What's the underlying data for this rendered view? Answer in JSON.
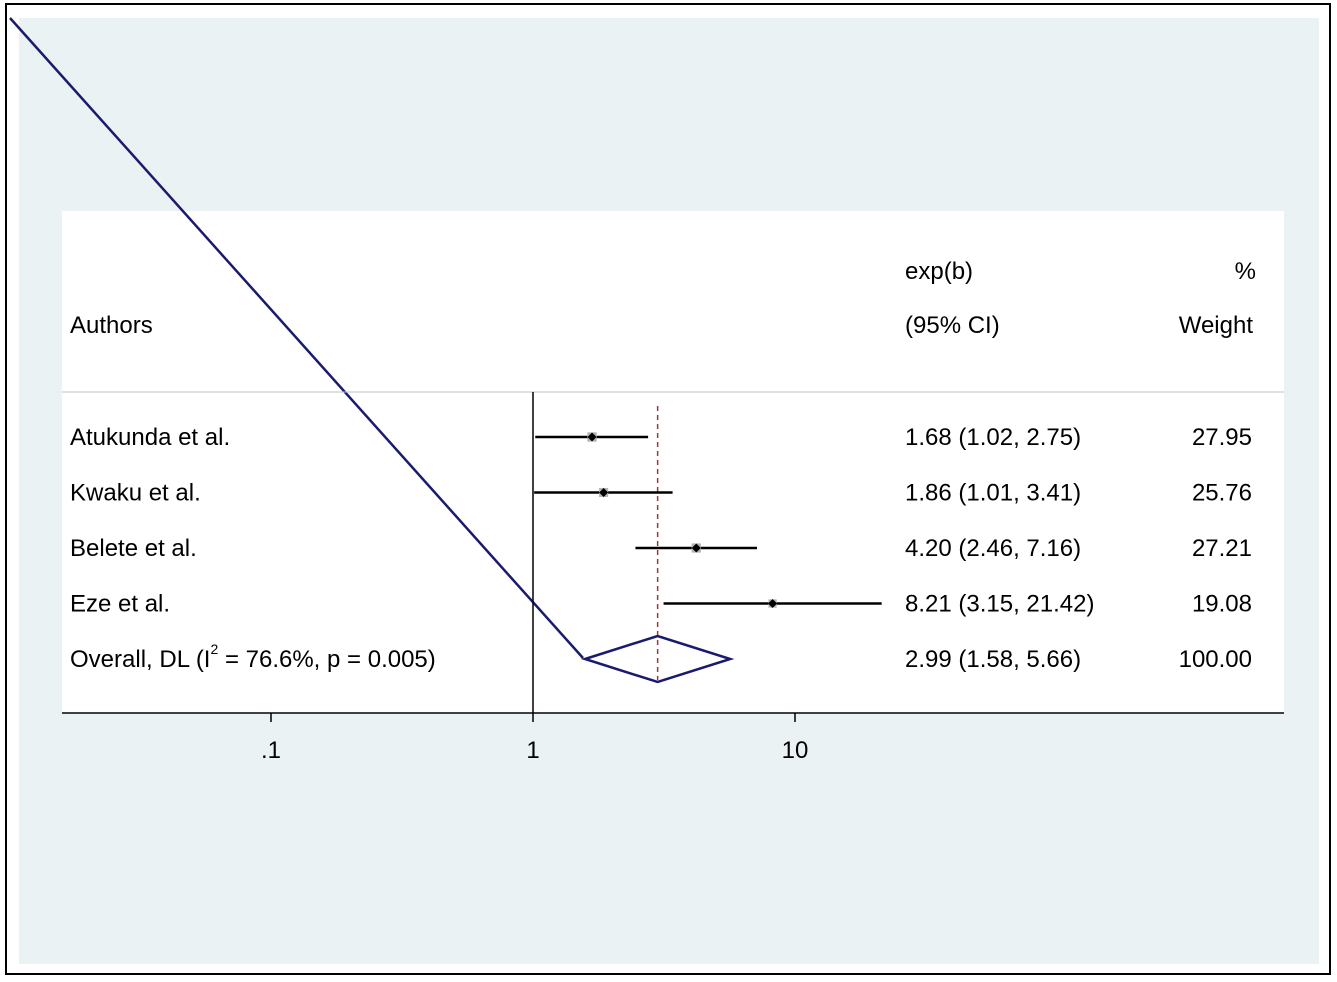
{
  "chart_data": {
    "type": "forest",
    "x_scale": "log",
    "x_ticks": [
      {
        "value": 0.1,
        "label": ".1"
      },
      {
        "value": 1,
        "label": "1"
      },
      {
        "value": 10,
        "label": "10"
      }
    ],
    "null_line_value": 1,
    "overall_line_value": 2.99,
    "columns": {
      "authors": "Authors",
      "effect_top": "exp(b)",
      "effect_bottom": "(95% CI)",
      "weight_top": "%",
      "weight_bottom": "Weight"
    },
    "studies": [
      {
        "name": "Atukunda et al.",
        "est": 1.68,
        "lo": 1.02,
        "hi": 2.75,
        "ci_text": "1.68 (1.02, 2.75)",
        "weight": 27.95,
        "weight_text": "27.95"
      },
      {
        "name": "Kwaku et al.",
        "est": 1.86,
        "lo": 1.01,
        "hi": 3.41,
        "ci_text": "1.86 (1.01, 3.41)",
        "weight": 25.76,
        "weight_text": "25.76"
      },
      {
        "name": "Belete et al.",
        "est": 4.2,
        "lo": 2.46,
        "hi": 7.16,
        "ci_text": "4.20 (2.46, 7.16)",
        "weight": 27.21,
        "weight_text": "27.21"
      },
      {
        "name": "Eze et al.",
        "est": 8.21,
        "lo": 3.15,
        "hi": 21.42,
        "ci_text": "8.21 (3.15, 21.42)",
        "weight": 19.08,
        "weight_text": "19.08"
      }
    ],
    "overall": {
      "label_pre": "Overall, DL (I",
      "label_sup": "2",
      "label_post": " = 76.6%, p = 0.005)",
      "est": 2.99,
      "lo": 1.58,
      "hi": 5.66,
      "ci_text": "2.99 (1.58, 5.66)",
      "weight_text": "100.00"
    },
    "colors": {
      "outer_background": "#eaf2f3",
      "plot_region": "#ffffff",
      "ci_line": "#000000",
      "weight_box": "#b4b4b4",
      "diamond": "#1a1a6e",
      "overall_line": "#9b3a3a",
      "artifact_line": "#1a1a6e"
    }
  }
}
